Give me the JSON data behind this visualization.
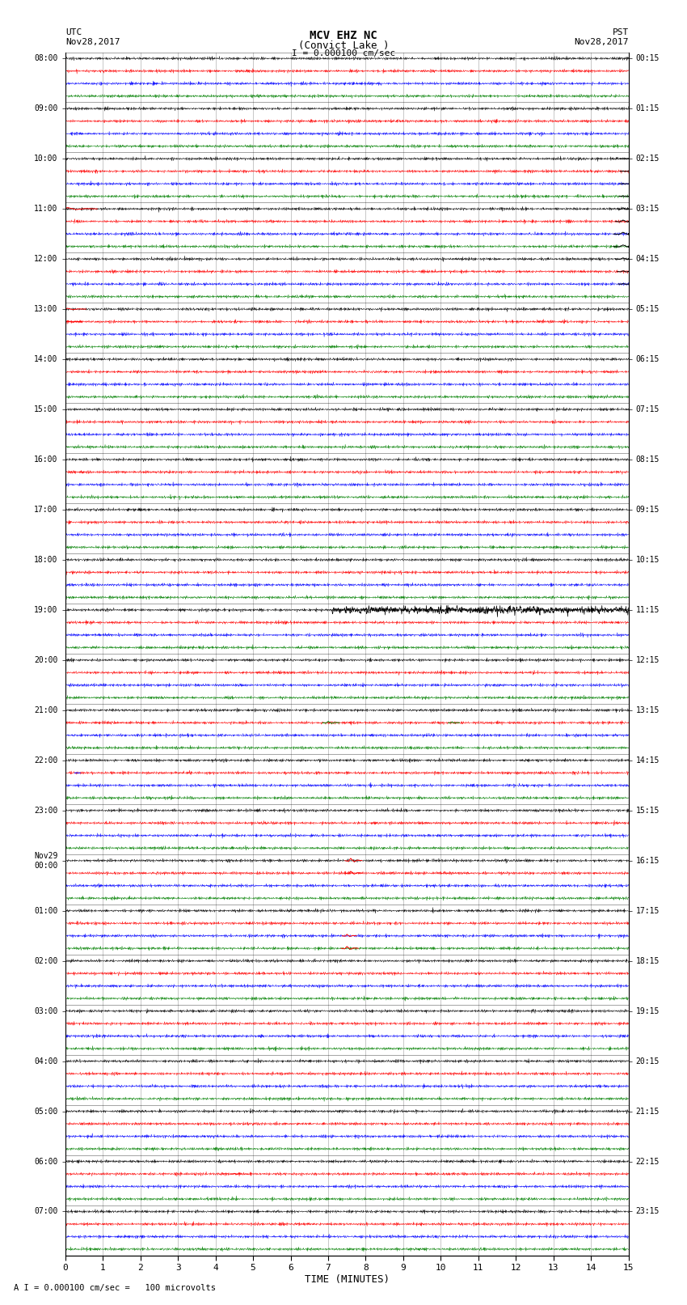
{
  "title_line1": "MCV EHZ NC",
  "title_line2": "(Convict Lake )",
  "scale_label": "I = 0.000100 cm/sec",
  "footer_label": "A I = 0.000100 cm/sec =   100 microvolts",
  "utc_label": "UTC\nNov28,2017",
  "pst_label": "PST\nNov28,2017",
  "xlabel": "TIME (MINUTES)",
  "left_times_all": [
    "08:00",
    "",
    "",
    "",
    "09:00",
    "",
    "",
    "",
    "10:00",
    "",
    "",
    "",
    "11:00",
    "",
    "",
    "",
    "12:00",
    "",
    "",
    "",
    "13:00",
    "",
    "",
    "",
    "14:00",
    "",
    "",
    "",
    "15:00",
    "",
    "",
    "",
    "16:00",
    "",
    "",
    "",
    "17:00",
    "",
    "",
    "",
    "18:00",
    "",
    "",
    "",
    "19:00",
    "",
    "",
    "",
    "20:00",
    "",
    "",
    "",
    "21:00",
    "",
    "",
    "",
    "22:00",
    "",
    "",
    "",
    "23:00",
    "",
    "",
    "",
    "Nov29\n00:00",
    "",
    "",
    "",
    "01:00",
    "",
    "",
    "",
    "02:00",
    "",
    "",
    "",
    "03:00",
    "",
    "",
    "",
    "04:00",
    "",
    "",
    "",
    "05:00",
    "",
    "",
    "",
    "06:00",
    "",
    "",
    "",
    "07:00",
    "",
    "",
    ""
  ],
  "right_times_all": [
    "00:15",
    "",
    "",
    "",
    "01:15",
    "",
    "",
    "",
    "02:15",
    "",
    "",
    "",
    "03:15",
    "",
    "",
    "",
    "04:15",
    "",
    "",
    "",
    "05:15",
    "",
    "",
    "",
    "06:15",
    "",
    "",
    "",
    "07:15",
    "",
    "",
    "",
    "08:15",
    "",
    "",
    "",
    "09:15",
    "",
    "",
    "",
    "10:15",
    "",
    "",
    "",
    "11:15",
    "",
    "",
    "",
    "12:15",
    "",
    "",
    "",
    "13:15",
    "",
    "",
    "",
    "14:15",
    "",
    "",
    "",
    "15:15",
    "",
    "",
    "",
    "16:15",
    "",
    "",
    "",
    "17:15",
    "",
    "",
    "",
    "18:15",
    "",
    "",
    "",
    "19:15",
    "",
    "",
    "",
    "20:15",
    "",
    "",
    "",
    "21:15",
    "",
    "",
    "",
    "22:15",
    "",
    "",
    "",
    "23:15",
    "",
    "",
    ""
  ],
  "n_rows": 96,
  "n_minutes": 15,
  "colors_cycle": [
    "black",
    "red",
    "blue",
    "green"
  ],
  "bg_color": "#ffffff",
  "noise_amplitude": 0.06,
  "fig_width": 8.5,
  "fig_height": 16.13,
  "dpi": 100,
  "large_events": [
    {
      "row": 8,
      "minute": 14.85,
      "color": "black",
      "amp": 0.45,
      "dur": 0.15
    },
    {
      "row": 9,
      "minute": 14.85,
      "color": "black",
      "amp": 0.55,
      "dur": 0.15
    },
    {
      "row": 10,
      "minute": 14.85,
      "color": "black",
      "amp": 0.7,
      "dur": 0.15
    },
    {
      "row": 11,
      "minute": 14.85,
      "color": "black",
      "amp": 0.8,
      "dur": 0.2
    },
    {
      "row": 12,
      "minute": 14.85,
      "color": "black",
      "amp": 1.5,
      "dur": 0.3
    },
    {
      "row": 13,
      "minute": 14.85,
      "color": "black",
      "amp": 1.8,
      "dur": 0.4
    },
    {
      "row": 14,
      "minute": 14.85,
      "color": "black",
      "amp": 2.2,
      "dur": 0.5
    },
    {
      "row": 15,
      "minute": 14.85,
      "color": "black",
      "amp": 2.0,
      "dur": 0.5
    },
    {
      "row": 16,
      "minute": 14.85,
      "color": "black",
      "amp": 1.5,
      "dur": 0.4
    },
    {
      "row": 17,
      "minute": 14.85,
      "color": "black",
      "amp": 1.0,
      "dur": 0.3
    },
    {
      "row": 18,
      "minute": 14.85,
      "color": "black",
      "amp": 0.6,
      "dur": 0.25
    },
    {
      "row": 44,
      "minute": 7.1,
      "color": "black",
      "amp": 2.5,
      "dur": 8.0
    },
    {
      "row": 12,
      "minute": 0.05,
      "color": "red",
      "amp": 1.8,
      "dur": 0.8
    },
    {
      "row": 20,
      "minute": 0.05,
      "color": "red",
      "amp": 1.2,
      "dur": 0.5
    },
    {
      "row": 21,
      "minute": 0.05,
      "color": "red",
      "amp": 0.8,
      "dur": 0.4
    },
    {
      "row": 53,
      "minute": 7.0,
      "color": "green",
      "amp": 1.8,
      "dur": 0.3
    },
    {
      "row": 53,
      "minute": 10.3,
      "color": "green",
      "amp": 1.2,
      "dur": 0.2
    },
    {
      "row": 57,
      "minute": 0.3,
      "color": "blue",
      "amp": 0.5,
      "dur": 0.1
    },
    {
      "row": 64,
      "minute": 7.6,
      "color": "red",
      "amp": 3.0,
      "dur": 0.3
    },
    {
      "row": 65,
      "minute": 7.6,
      "color": "red",
      "amp": 2.5,
      "dur": 0.3
    },
    {
      "row": 70,
      "minute": 7.5,
      "color": "red",
      "amp": 2.0,
      "dur": 0.25
    },
    {
      "row": 71,
      "minute": 7.5,
      "color": "red",
      "amp": 2.5,
      "dur": 0.3
    },
    {
      "row": 89,
      "minute": 4.5,
      "color": "red",
      "amp": 0.8,
      "dur": 0.2
    },
    {
      "row": 148,
      "minute": 1.0,
      "color": "black",
      "amp": 0.6,
      "dur": 0.2
    },
    {
      "row": 149,
      "minute": 0.5,
      "color": "black",
      "amp": 0.8,
      "dur": 0.2
    },
    {
      "row": 150,
      "minute": 0.5,
      "color": "black",
      "amp": 1.0,
      "dur": 0.25
    },
    {
      "row": 152,
      "minute": 1.5,
      "color": "black",
      "amp": 0.7,
      "dur": 0.2
    },
    {
      "row": 153,
      "minute": 1.5,
      "color": "black",
      "amp": 0.8,
      "dur": 0.2
    },
    {
      "row": 153,
      "minute": 3.0,
      "color": "black",
      "amp": 0.6,
      "dur": 0.15
    },
    {
      "row": 154,
      "minute": 5.0,
      "color": "blue",
      "amp": 2.5,
      "dur": 0.3
    },
    {
      "row": 155,
      "minute": 1.5,
      "color": "black",
      "amp": 1.2,
      "dur": 0.3
    },
    {
      "row": 155,
      "minute": 3.5,
      "color": "black",
      "amp": 0.8,
      "dur": 0.2
    },
    {
      "row": 156,
      "minute": 3.5,
      "color": "black",
      "amp": 0.6,
      "dur": 0.2
    },
    {
      "row": 164,
      "minute": 10.5,
      "color": "black",
      "amp": 0.6,
      "dur": 0.2
    },
    {
      "row": 169,
      "minute": 14.5,
      "color": "red",
      "amp": 0.5,
      "dur": 0.15
    },
    {
      "row": 177,
      "minute": 14.5,
      "color": "red",
      "amp": 0.5,
      "dur": 0.15
    }
  ]
}
